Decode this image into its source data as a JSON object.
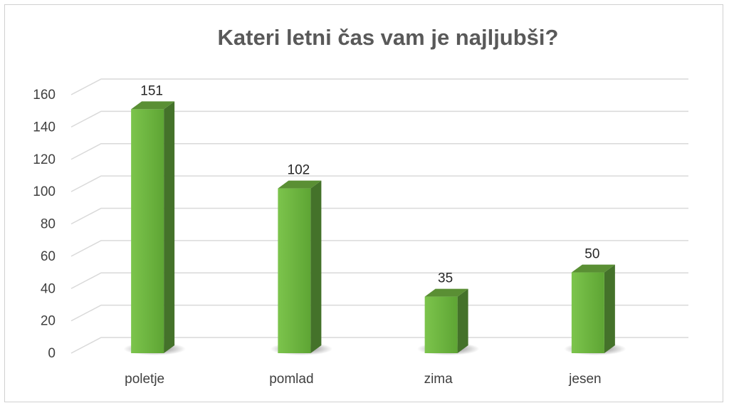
{
  "chart_data": {
    "type": "bar",
    "title": "Kateri letni čas vam je najljubši?",
    "categories": [
      "poletje",
      "pomlad",
      "zima",
      "jesen"
    ],
    "series": [
      {
        "values": [
          151,
          102,
          35,
          50
        ]
      }
    ],
    "data_labels": [
      "151",
      "102",
      "35",
      "50"
    ],
    "ylim": [
      0,
      160
    ],
    "yticks": [
      "0",
      "20",
      "40",
      "60",
      "80",
      "100",
      "120",
      "140",
      "160"
    ],
    "xlabel": "",
    "ylabel": "",
    "grid": true,
    "legend": "none",
    "bar_style": "3d-column",
    "colors": {
      "bar_front": "#6db33f",
      "bar_top": "#5a8f34",
      "bar_side": "#44722a",
      "gridline": "#d9d9d9",
      "text": "#404040",
      "title": "#595959"
    }
  }
}
